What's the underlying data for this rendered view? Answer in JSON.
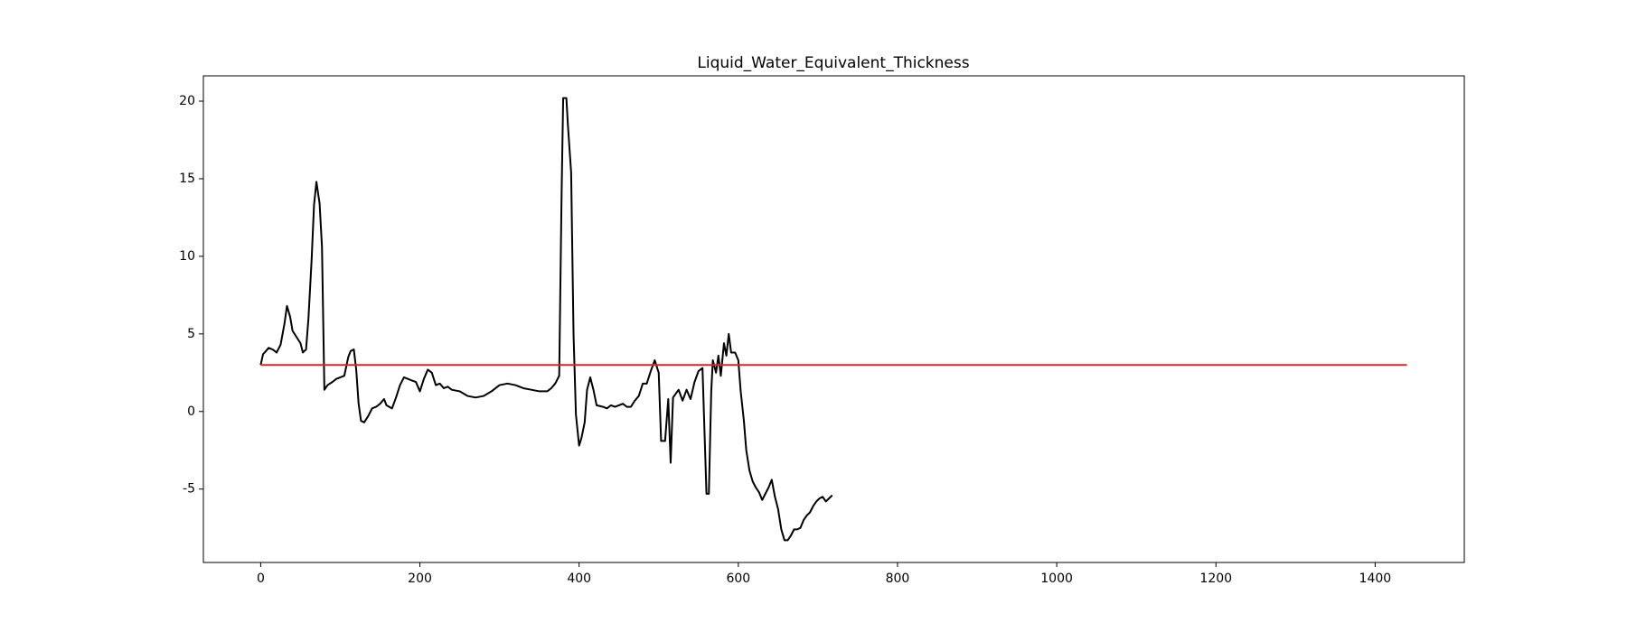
{
  "chart_data": {
    "type": "line",
    "title": "Liquid_Water_Equivalent_Thickness",
    "xlim": [
      -72,
      1512
    ],
    "ylim": [
      -9.73,
      21.63
    ],
    "xticks": [
      0,
      200,
      400,
      600,
      800,
      1000,
      1200,
      1400
    ],
    "yticks": [
      -5,
      0,
      5,
      10,
      15,
      20
    ],
    "series": [
      {
        "color": "#000000",
        "x": [
          0,
          3,
          5,
          10,
          15,
          20,
          25,
          30,
          33,
          37,
          40,
          45,
          50,
          53,
          57,
          60,
          64,
          67,
          70,
          74,
          77,
          80,
          84,
          90,
          95,
          100,
          105,
          110,
          113,
          117,
          120,
          123,
          126,
          130,
          135,
          140,
          145,
          150,
          155,
          158,
          165,
          170,
          175,
          180,
          185,
          190,
          195,
          200,
          205,
          210,
          215,
          220,
          225,
          230,
          235,
          240,
          250,
          260,
          270,
          280,
          290,
          300,
          310,
          320,
          330,
          340,
          350,
          360,
          365,
          370,
          375,
          378,
          380,
          384,
          386,
          390,
          393,
          396,
          400,
          403,
          407,
          410,
          414,
          418,
          422,
          430,
          435,
          440,
          445,
          450,
          455,
          460,
          465,
          470,
          475,
          480,
          485,
          490,
          495,
          500,
          503,
          508,
          512,
          515,
          518,
          525,
          530,
          535,
          540,
          545,
          550,
          555,
          560,
          563,
          566,
          568,
          572,
          575,
          578,
          582,
          585,
          588,
          591,
          596,
          600,
          603,
          607,
          610,
          614,
          618,
          622,
          626,
          630,
          634,
          638,
          642,
          646,
          650,
          654,
          658,
          662,
          666,
          670,
          674,
          678,
          682,
          686,
          690,
          694,
          698,
          702,
          706,
          710,
          714,
          718
        ],
        "values": [
          3.0,
          3.7,
          3.8,
          4.1,
          4.0,
          3.8,
          4.3,
          5.7,
          6.8,
          6.1,
          5.2,
          4.8,
          4.4,
          3.8,
          4.0,
          6.0,
          9.8,
          13.3,
          14.8,
          13.4,
          10.6,
          1.4,
          1.7,
          1.9,
          2.1,
          2.2,
          2.3,
          3.5,
          3.9,
          4.0,
          2.7,
          0.5,
          -0.6,
          -0.7,
          -0.3,
          0.2,
          0.3,
          0.5,
          0.8,
          0.4,
          0.2,
          0.9,
          1.7,
          2.2,
          2.1,
          2.0,
          1.9,
          1.3,
          2.1,
          2.7,
          2.5,
          1.7,
          1.8,
          1.5,
          1.6,
          1.4,
          1.3,
          1.0,
          0.9,
          1.0,
          1.3,
          1.7,
          1.8,
          1.7,
          1.5,
          1.4,
          1.3,
          1.3,
          1.5,
          1.8,
          2.3,
          14,
          20.2,
          20.2,
          18.4,
          15.4,
          5.0,
          -0.2,
          -2.2,
          -1.7,
          -0.7,
          1.4,
          2.2,
          1.4,
          0.4,
          0.3,
          0.2,
          0.4,
          0.3,
          0.4,
          0.5,
          0.3,
          0.3,
          0.7,
          1.0,
          1.8,
          1.8,
          2.6,
          3.3,
          2.5,
          -1.9,
          -1.9,
          0.8,
          -3.3,
          0.9,
          1.4,
          0.7,
          1.4,
          0.8,
          1.9,
          2.6,
          2.8,
          -5.3,
          -5.3,
          1.3,
          3.3,
          2.5,
          3.6,
          2.3,
          4.4,
          3.6,
          5.0,
          3.8,
          3.8,
          3.3,
          1.3,
          -0.6,
          -2.5,
          -3.8,
          -4.5,
          -4.9,
          -5.2,
          -5.7,
          -5.3,
          -4.9,
          -4.4,
          -5.5,
          -6.3,
          -7.6,
          -8.3,
          -8.3,
          -8.0,
          -7.6,
          -7.6,
          -7.5,
          -7.0,
          -6.7,
          -6.5,
          -6.1,
          -5.8,
          -5.6,
          -5.5,
          -5.8,
          -5.6,
          -5.4
        ]
      },
      {
        "color": "#d62728",
        "x": [
          0,
          1440
        ],
        "values": [
          3,
          3
        ]
      }
    ]
  }
}
